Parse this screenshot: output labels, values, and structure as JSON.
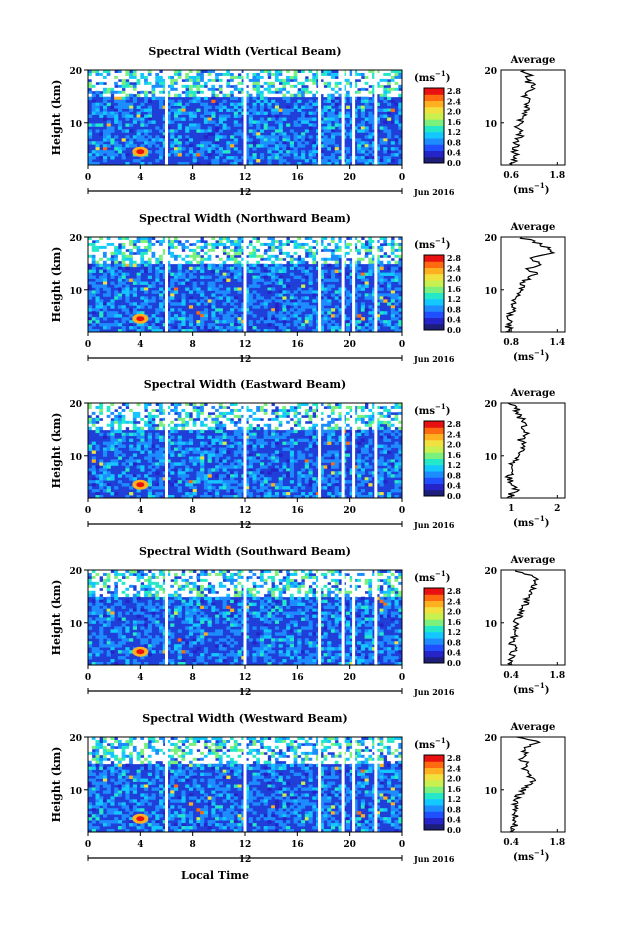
{
  "figure": {
    "ylabel": "Height (km)",
    "xlabel": "Local Time",
    "colorbar_unit": "(ms",
    "colorbar_unit_sup": "−1",
    "profile_title": "Average",
    "profile_xunit": "(ms",
    "profile_xunit_sup": "−1",
    "date_label": "Jun 2016",
    "day_label": "12",
    "colormap": [
      "#1d1d7a",
      "#2424c8",
      "#1f4fff",
      "#1d8cff",
      "#14c8ff",
      "#25e8c8",
      "#7cf07c",
      "#c8f050",
      "#f0e040",
      "#ffb020",
      "#ff6a10",
      "#e81010"
    ]
  },
  "chart_data": [
    {
      "type": "heatmap",
      "title": "Spectral Width (Vertical Beam)",
      "x_ticks": [
        "0",
        "4",
        "8",
        "12",
        "16",
        "20",
        "0"
      ],
      "x_range": [
        0,
        24
      ],
      "y_ticks": [
        "20",
        "10"
      ],
      "y_range": [
        2,
        20
      ],
      "colorbar_ticks": [
        "2.8",
        "2.4",
        "2.0",
        "1.6",
        "1.2",
        "0.8",
        "0.4",
        "0.0"
      ],
      "colorbar_range": [
        0.0,
        2.8
      ],
      "profile_x_ticks": [
        "0.6",
        "1.8"
      ],
      "profile_x_range": [
        0.4,
        2.0
      ],
      "profile": {
        "height": [
          2,
          3,
          4,
          5,
          6,
          7,
          8,
          9,
          10,
          11,
          12,
          13,
          14,
          15,
          16,
          17,
          18,
          19,
          20
        ],
        "value": [
          0.7,
          0.75,
          0.8,
          0.72,
          0.78,
          0.85,
          0.9,
          0.82,
          0.88,
          0.95,
          1.0,
          1.05,
          1.1,
          1.0,
          1.15,
          1.2,
          1.05,
          1.1,
          0.95
        ]
      }
    },
    {
      "type": "heatmap",
      "title": "Spectral Width (Northward Beam)",
      "x_ticks": [
        "0",
        "4",
        "8",
        "12",
        "16",
        "20",
        "0"
      ],
      "x_range": [
        0,
        24
      ],
      "y_ticks": [
        "20",
        "10"
      ],
      "y_range": [
        2,
        20
      ],
      "colorbar_ticks": [
        "2.8",
        "2.4",
        "2.0",
        "1.6",
        "1.2",
        "0.8",
        "0.4",
        "0.0"
      ],
      "colorbar_range": [
        0.0,
        2.8
      ],
      "profile_x_ticks": [
        "0.8",
        "1.4"
      ],
      "profile_x_range": [
        0.6,
        1.5
      ],
      "profile": {
        "height": [
          2,
          3,
          4,
          5,
          6,
          7,
          8,
          9,
          10,
          11,
          12,
          13,
          14,
          15,
          16,
          17,
          18,
          19,
          20
        ],
        "value": [
          0.72,
          0.7,
          0.74,
          0.72,
          0.76,
          0.78,
          0.8,
          0.85,
          0.88,
          0.9,
          0.98,
          1.1,
          1.0,
          1.15,
          1.05,
          1.3,
          1.25,
          1.1,
          0.85
        ]
      }
    },
    {
      "type": "heatmap",
      "title": "Spectral Width (Eastward Beam)",
      "x_ticks": [
        "0",
        "4",
        "8",
        "12",
        "16",
        "20",
        "0"
      ],
      "x_range": [
        0,
        24
      ],
      "y_ticks": [
        "20",
        "10"
      ],
      "y_range": [
        2,
        20
      ],
      "colorbar_ticks": [
        "2.8",
        "2.4",
        "2.0",
        "1.6",
        "1.2",
        "0.8",
        "0.4",
        "0.0"
      ],
      "colorbar_range": [
        0.0,
        2.8
      ],
      "profile_x_ticks": [
        "1",
        "2"
      ],
      "profile_x_range": [
        0.3,
        2.2
      ],
      "profile": {
        "height": [
          2,
          3,
          4,
          5,
          6,
          7,
          8,
          9,
          10,
          11,
          12,
          13,
          14,
          15,
          16,
          17,
          18,
          19,
          20
        ],
        "value": [
          0.55,
          0.65,
          0.8,
          0.6,
          0.55,
          0.6,
          0.62,
          0.7,
          0.75,
          0.9,
          1.0,
          0.85,
          1.05,
          0.95,
          1.1,
          0.9,
          0.8,
          0.75,
          0.6
        ]
      }
    },
    {
      "type": "heatmap",
      "title": "Spectral Width (Southward Beam)",
      "x_ticks": [
        "0",
        "4",
        "8",
        "12",
        "16",
        "20",
        "0"
      ],
      "x_range": [
        0,
        24
      ],
      "y_ticks": [
        "20",
        "10"
      ],
      "y_range": [
        2,
        20
      ],
      "colorbar_ticks": [
        "2.8",
        "2.4",
        "2.0",
        "1.6",
        "1.2",
        "0.8",
        "0.4",
        "0.0"
      ],
      "colorbar_range": [
        0.0,
        2.8
      ],
      "profile_x_ticks": [
        "0.4",
        "1.8"
      ],
      "profile_x_range": [
        0.4,
        1.8
      ],
      "profile": {
        "height": [
          2,
          3,
          4,
          5,
          6,
          7,
          8,
          9,
          10,
          11,
          12,
          13,
          14,
          15,
          16,
          17,
          18,
          19,
          20
        ],
        "value": [
          0.6,
          0.65,
          0.62,
          0.7,
          0.62,
          0.66,
          0.72,
          0.75,
          0.7,
          0.78,
          0.82,
          0.9,
          0.95,
          1.0,
          1.05,
          1.1,
          1.2,
          1.05,
          0.7
        ]
      }
    },
    {
      "type": "heatmap",
      "title": "Spectral Width (Westward Beam)",
      "x_ticks": [
        "0",
        "4",
        "8",
        "12",
        "16",
        "20",
        "0"
      ],
      "x_range": [
        0,
        24
      ],
      "y_ticks": [
        "20",
        "10"
      ],
      "y_range": [
        2,
        20
      ],
      "colorbar_ticks": [
        "2.8",
        "2.4",
        "2.0",
        "1.6",
        "1.2",
        "0.8",
        "0.4",
        "0.0"
      ],
      "colorbar_range": [
        0.0,
        2.8
      ],
      "profile_x_ticks": [
        "0.4",
        "1.8"
      ],
      "profile_x_range": [
        0.4,
        1.8
      ],
      "profile": {
        "height": [
          2,
          3,
          4,
          5,
          6,
          7,
          8,
          9,
          10,
          11,
          12,
          13,
          14,
          15,
          16,
          17,
          18,
          19,
          20
        ],
        "value": [
          0.62,
          0.7,
          0.66,
          0.75,
          0.68,
          0.7,
          0.74,
          0.8,
          0.9,
          1.0,
          1.1,
          0.95,
          0.9,
          0.95,
          0.85,
          0.9,
          0.95,
          1.2,
          0.8
        ]
      }
    }
  ]
}
